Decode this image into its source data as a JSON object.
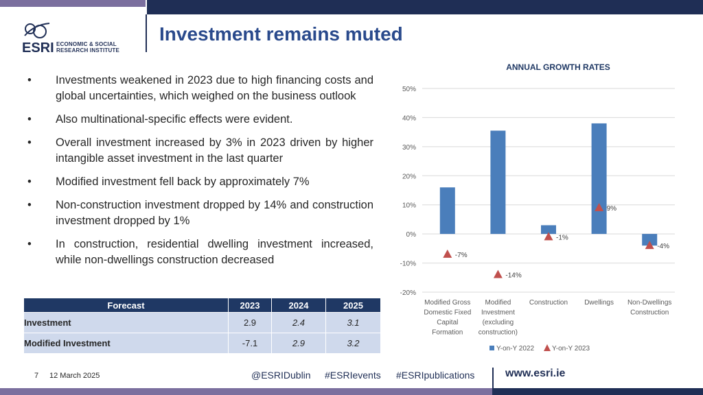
{
  "slide": {
    "title": "Investment remains muted",
    "logo_abbr": "ESRI",
    "logo_line1": "ECONOMIC & SOCIAL",
    "logo_line2": "RESEARCH INSTITUTE"
  },
  "bullets": [
    "Investments weakened in 2023 due to high financing costs and global uncertainties, which weighed on the business outlook",
    "Also multinational-specific effects were evident.",
    "Overall investment increased by 3% in 2023 driven by higher intangible asset investment in the last quarter",
    "Modified investment fell back by approximately 7%",
    "Non-construction investment dropped by 14% and construction investment dropped by 1%",
    "In construction, residential dwelling investment increased, while non-dwellings construction decreased"
  ],
  "bullet_symbol": "•",
  "forecast_table": {
    "headers": [
      "Forecast",
      "2023",
      "2024",
      "2025"
    ],
    "rows": [
      {
        "label": "Investment",
        "values": [
          "2.9",
          "2.4",
          "3.1"
        ]
      },
      {
        "label": "Modified Investment",
        "values": [
          "-7.1",
          "2.9",
          "3.2"
        ]
      }
    ]
  },
  "chart_data": {
    "type": "bar",
    "title": "ANNUAL GROWTH RATES",
    "categories": [
      [
        "Modified Gross",
        "Domestic Fixed",
        "Capital",
        "Formation"
      ],
      [
        "Modified",
        "Investment",
        "(excluding",
        "construction)"
      ],
      [
        "Construction"
      ],
      [
        "Dwellings"
      ],
      [
        "Non-Dwellings",
        "Construction"
      ]
    ],
    "series": [
      {
        "name": "Y-on-Y 2022",
        "kind": "bar",
        "color": "#4a7ebb",
        "values": [
          16,
          35.5,
          3,
          38,
          -4
        ]
      },
      {
        "name": "Y-on-Y 2023",
        "kind": "marker",
        "color": "#c0504d",
        "values": [
          -7,
          -14,
          -1,
          9,
          -4
        ],
        "labels": [
          "-7%",
          "-14%",
          "-1%",
          "9%",
          "-4%"
        ]
      }
    ],
    "yticks": [
      "50%",
      "40%",
      "30%",
      "20%",
      "10%",
      "0%",
      "-10%",
      "-20%"
    ],
    "ylim": [
      -20,
      50
    ],
    "grid": true,
    "legend_position": "bottom"
  },
  "footer": {
    "page": "7",
    "date": "12 March 2025",
    "handles": [
      "@ESRIDublin",
      "#ESRIevents",
      "#ESRIpublications"
    ],
    "url": "www.esri.ie"
  }
}
